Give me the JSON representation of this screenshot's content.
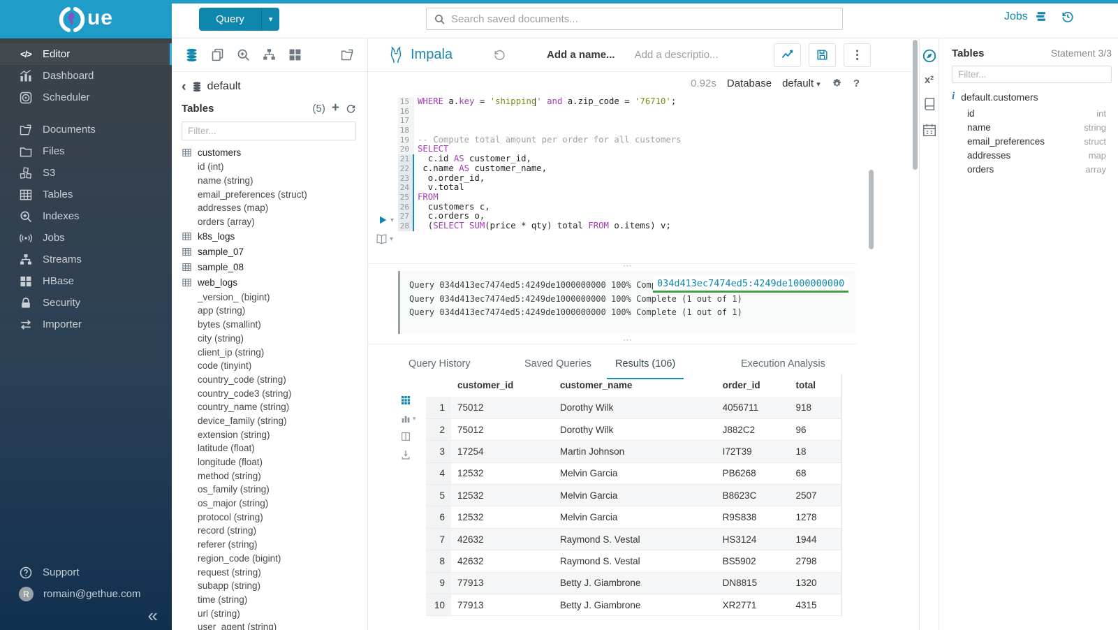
{
  "brand": {
    "logo_text": "ue",
    "header_color": "#209CC9",
    "accent_color": "#0E86AE"
  },
  "topbar": {
    "query_button": "Query",
    "search_placeholder": "Search saved documents...",
    "jobs_label": "Jobs"
  },
  "sidebar": {
    "items": [
      {
        "icon": "code",
        "label": "Editor",
        "selected": true
      },
      {
        "icon": "dashboard",
        "label": "Dashboard"
      },
      {
        "icon": "scheduler",
        "label": "Scheduler"
      },
      {
        "icon": "documents",
        "label": "Documents",
        "gap": true
      },
      {
        "icon": "files",
        "label": "Files"
      },
      {
        "icon": "s3",
        "label": "S3"
      },
      {
        "icon": "tables",
        "label": "Tables"
      },
      {
        "icon": "indexes",
        "label": "Indexes"
      },
      {
        "icon": "jobs",
        "label": "Jobs"
      },
      {
        "icon": "streams",
        "label": "Streams"
      },
      {
        "icon": "hbase",
        "label": "HBase"
      },
      {
        "icon": "security",
        "label": "Security"
      },
      {
        "icon": "importer",
        "label": "Importer"
      }
    ],
    "footer": [
      {
        "icon": "support",
        "label": "Support"
      },
      {
        "icon": "avatar",
        "label": "romain@gethue.com",
        "avatar_letter": "R"
      }
    ]
  },
  "db_panel": {
    "database": "default",
    "tables_label": "Tables",
    "count": "(5)",
    "filter_placeholder": "Filter...",
    "tree": [
      {
        "t": "t",
        "l": "customers"
      },
      {
        "t": "c",
        "l": "id (int)"
      },
      {
        "t": "c",
        "l": "name (string)"
      },
      {
        "t": "c",
        "l": "email_preferences (struct)"
      },
      {
        "t": "c",
        "l": "addresses (map)"
      },
      {
        "t": "c",
        "l": "orders (array)"
      },
      {
        "t": "t",
        "l": "k8s_logs"
      },
      {
        "t": "t",
        "l": "sample_07"
      },
      {
        "t": "t",
        "l": "sample_08"
      },
      {
        "t": "t",
        "l": "web_logs"
      },
      {
        "t": "c",
        "l": "_version_ (bigint)"
      },
      {
        "t": "c",
        "l": "app (string)"
      },
      {
        "t": "c",
        "l": "bytes (smallint)"
      },
      {
        "t": "c",
        "l": "city (string)"
      },
      {
        "t": "c",
        "l": "client_ip (string)"
      },
      {
        "t": "c",
        "l": "code (tinyint)"
      },
      {
        "t": "c",
        "l": "country_code (string)"
      },
      {
        "t": "c",
        "l": "country_code3 (string)"
      },
      {
        "t": "c",
        "l": "country_name (string)"
      },
      {
        "t": "c",
        "l": "device_family (string)"
      },
      {
        "t": "c",
        "l": "extension (string)"
      },
      {
        "t": "c",
        "l": "latitude (float)"
      },
      {
        "t": "c",
        "l": "longitude (float)"
      },
      {
        "t": "c",
        "l": "method (string)"
      },
      {
        "t": "c",
        "l": "os_family (string)"
      },
      {
        "t": "c",
        "l": "os_major (string)"
      },
      {
        "t": "c",
        "l": "protocol (string)"
      },
      {
        "t": "c",
        "l": "record (string)"
      },
      {
        "t": "c",
        "l": "referer (string)"
      },
      {
        "t": "c",
        "l": "region_code (bigint)"
      },
      {
        "t": "c",
        "l": "request (string)"
      },
      {
        "t": "c",
        "l": "subapp (string)"
      },
      {
        "t": "c",
        "l": "time (string)"
      },
      {
        "t": "c",
        "l": "url (string)"
      },
      {
        "t": "c",
        "l": "user_agent (string)"
      }
    ]
  },
  "editor": {
    "engine": "Impala",
    "name_placeholder": "Add a name...",
    "desc_placeholder": "Add a descriptio...",
    "exec_time": "0.92s",
    "database_label": "Database",
    "database_value": "default",
    "code_lines": [
      {
        "no": "15",
        "hl": false,
        "tokens": [
          [
            "k",
            "WHERE"
          ],
          [
            "p",
            " a."
          ],
          [
            "k",
            "key"
          ],
          [
            "p",
            " = "
          ],
          [
            "s",
            "'shipping'"
          ],
          [
            "p",
            " "
          ],
          [
            "k",
            "and"
          ],
          [
            "p",
            " a.zip_code = "
          ],
          [
            "s",
            "'76710'"
          ],
          [
            "p",
            ";"
          ]
        ]
      },
      {
        "no": "16",
        "hl": false,
        "tokens": []
      },
      {
        "no": "17",
        "hl": false,
        "tokens": []
      },
      {
        "no": "18",
        "hl": false,
        "tokens": []
      },
      {
        "no": "19",
        "hl": false,
        "tokens": [
          [
            "c",
            "-- Compute total amount per order for all customers"
          ]
        ]
      },
      {
        "no": "20",
        "hl": false,
        "tokens": [
          [
            "k",
            "SELECT"
          ]
        ]
      },
      {
        "no": "21",
        "hl": true,
        "tokens": [
          [
            "p",
            "  c.id "
          ],
          [
            "k",
            "AS"
          ],
          [
            "p",
            " customer_id,"
          ]
        ]
      },
      {
        "no": "22",
        "hl": true,
        "tokens": [
          [
            "p",
            " c.name "
          ],
          [
            "k",
            "AS"
          ],
          [
            "p",
            " customer_name,"
          ]
        ]
      },
      {
        "no": "23",
        "hl": true,
        "tokens": [
          [
            "p",
            "  o.order_id,"
          ]
        ]
      },
      {
        "no": "24",
        "hl": true,
        "tokens": [
          [
            "p",
            "  v.total"
          ]
        ]
      },
      {
        "no": "25",
        "hl": true,
        "tokens": [
          [
            "k",
            "FROM"
          ]
        ]
      },
      {
        "no": "26",
        "hl": true,
        "tokens": [
          [
            "p",
            "  customers c,"
          ]
        ]
      },
      {
        "no": "27",
        "hl": true,
        "tokens": [
          [
            "p",
            "  c.orders o,"
          ]
        ]
      },
      {
        "no": "28",
        "hl": true,
        "tokens": [
          [
            "p",
            "  ("
          ],
          [
            "k",
            "SELECT"
          ],
          [
            "p",
            " "
          ],
          [
            "k",
            "SUM"
          ],
          [
            "p",
            "(price * qty) total "
          ],
          [
            "k",
            "FROM"
          ],
          [
            "p",
            " o.items) v;"
          ]
        ]
      }
    ],
    "log": {
      "lines": [
        "Query 034d413ec7474ed5:4249de1000000000 100% Complete (1 out of 1)",
        "Query 034d413ec7474ed5:4249de1000000000 100% Complete (1 out of 1)",
        "Query 034d413ec7474ed5:4249de1000000000 100% Complete (1 out of 1)"
      ],
      "link_text": "034d413ec7474ed5:4249de1000000000",
      "link_underline_color": "#43A047"
    },
    "tabs": {
      "labels": [
        "Query History",
        "Saved Queries",
        "Results (106)",
        "Execution Analysis"
      ],
      "active": 2
    },
    "results": {
      "columns": [
        "customer_id",
        "customer_name",
        "order_id",
        "total"
      ],
      "rows": [
        [
          "1",
          "75012",
          "Dorothy Wilk",
          "4056711",
          "918"
        ],
        [
          "2",
          "75012",
          "Dorothy Wilk",
          "J882C2",
          "96"
        ],
        [
          "3",
          "17254",
          "Martin Johnson",
          "I72T39",
          "18"
        ],
        [
          "4",
          "12532",
          "Melvin Garcia",
          "PB6268",
          "68"
        ],
        [
          "5",
          "12532",
          "Melvin Garcia",
          "B8623C",
          "2507"
        ],
        [
          "6",
          "12532",
          "Melvin Garcia",
          "R9S838",
          "1278"
        ],
        [
          "7",
          "42632",
          "Raymond S. Vestal",
          "HS3124",
          "1944"
        ],
        [
          "8",
          "42632",
          "Raymond S. Vestal",
          "BS5902",
          "2798"
        ],
        [
          "9",
          "77913",
          "Betty J. Giambrone",
          "DN8815",
          "1320"
        ],
        [
          "10",
          "77913",
          "Betty J. Giambrone",
          "XR2771",
          "4315"
        ]
      ]
    }
  },
  "right_panel": {
    "title": "Tables",
    "statement": "Statement 3/3",
    "filter_placeholder": "Filter...",
    "table_name": "default.customers",
    "columns": [
      {
        "name": "id",
        "type": "int"
      },
      {
        "name": "name",
        "type": "string"
      },
      {
        "name": "email_preferences",
        "type": "struct"
      },
      {
        "name": "addresses",
        "type": "map"
      },
      {
        "name": "orders",
        "type": "array"
      }
    ]
  }
}
